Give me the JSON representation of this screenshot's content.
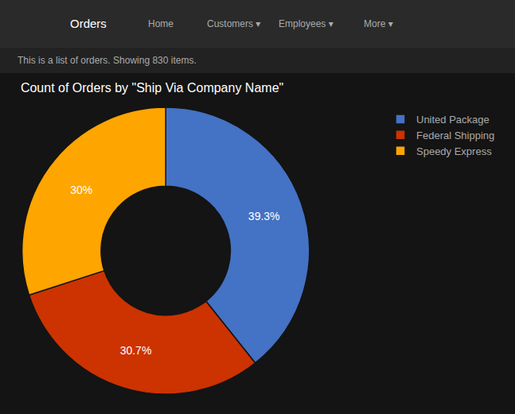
{
  "chart_data": {
    "type": "pie",
    "title": "Count of Orders by \"Ship Via Company Name\"",
    "subtitle": "This is a list of orders. Showing 830 items.",
    "annotations": [
      "Orders",
      "Home",
      "Customers ▾",
      "Employees ▾",
      "More ▾"
    ],
    "categories": [
      "United Package",
      "Federal Shipping",
      "Speedy Express"
    ],
    "values": [
      39.3,
      30.7,
      30.0
    ],
    "value_labels": [
      "39.3%",
      "30.7%",
      "30%"
    ],
    "colors": [
      "#4472C4",
      "#CC3300",
      "#FFA500"
    ],
    "data_labels": true,
    "legend": "upper right"
  }
}
